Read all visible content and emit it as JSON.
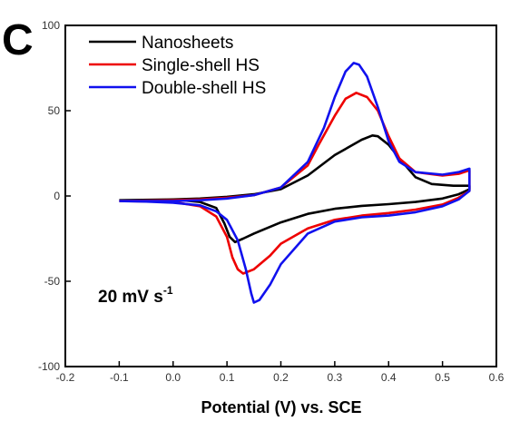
{
  "chart_data": {
    "type": "line",
    "panel_label": "C",
    "xlabel": "Potential (V) vs. SCE",
    "ylabel": "",
    "xlim": [
      -0.2,
      0.6
    ],
    "ylim": [
      -100,
      100
    ],
    "x_ticks": [
      "-0.2",
      "-0.1",
      "0.0",
      "0.1",
      "0.2",
      "0.3",
      "0.4",
      "0.5",
      "0.6"
    ],
    "y_ticks": [
      "-100",
      "-50",
      "0",
      "50",
      "100"
    ],
    "annotation": {
      "text": "20 mV s",
      "superscript": "-1"
    },
    "legend_position": "top-left",
    "grid": false,
    "series": [
      {
        "name": "Nanosheets",
        "color": "#000000",
        "points": [
          [
            -0.1,
            -2.5
          ],
          [
            0.0,
            -2.0
          ],
          [
            0.05,
            -3.5
          ],
          [
            0.08,
            -7.0
          ],
          [
            0.095,
            -16.0
          ],
          [
            0.105,
            -24.0
          ],
          [
            0.115,
            -27.0
          ],
          [
            0.13,
            -25.0
          ],
          [
            0.15,
            -22.0
          ],
          [
            0.2,
            -15.5
          ],
          [
            0.25,
            -10.5
          ],
          [
            0.3,
            -7.5
          ],
          [
            0.35,
            -5.8
          ],
          [
            0.4,
            -4.8
          ],
          [
            0.45,
            -3.5
          ],
          [
            0.5,
            -1.5
          ],
          [
            0.53,
            1.0
          ],
          [
            0.55,
            4.0
          ],
          [
            0.55,
            6.0
          ],
          [
            0.52,
            6.0
          ],
          [
            0.48,
            7.0
          ],
          [
            0.45,
            11.0
          ],
          [
            0.42,
            22.0
          ],
          [
            0.4,
            30.0
          ],
          [
            0.38,
            35.0
          ],
          [
            0.37,
            35.5
          ],
          [
            0.35,
            33.0
          ],
          [
            0.3,
            24.0
          ],
          [
            0.25,
            12.0
          ],
          [
            0.2,
            4.0
          ],
          [
            0.15,
            1.0
          ],
          [
            0.1,
            -0.5
          ],
          [
            0.05,
            -1.5
          ],
          [
            0.0,
            -2.0
          ],
          [
            -0.05,
            -2.3
          ],
          [
            -0.1,
            -2.5
          ]
        ]
      },
      {
        "name": "Single-shell HS",
        "color": "#ee0000",
        "points": [
          [
            -0.1,
            -3.0
          ],
          [
            -0.05,
            -3.2
          ],
          [
            0.0,
            -3.5
          ],
          [
            0.05,
            -6.0
          ],
          [
            0.08,
            -12.0
          ],
          [
            0.1,
            -24.0
          ],
          [
            0.11,
            -36.0
          ],
          [
            0.12,
            -43.0
          ],
          [
            0.13,
            -45.5
          ],
          [
            0.15,
            -43.0
          ],
          [
            0.18,
            -35.0
          ],
          [
            0.2,
            -28.0
          ],
          [
            0.25,
            -19.0
          ],
          [
            0.3,
            -14.0
          ],
          [
            0.35,
            -11.5
          ],
          [
            0.4,
            -10.0
          ],
          [
            0.45,
            -8.0
          ],
          [
            0.5,
            -5.0
          ],
          [
            0.53,
            -1.0
          ],
          [
            0.55,
            3.0
          ],
          [
            0.55,
            15.0
          ],
          [
            0.53,
            13.0
          ],
          [
            0.5,
            12.0
          ],
          [
            0.45,
            14.0
          ],
          [
            0.42,
            22.0
          ],
          [
            0.4,
            35.0
          ],
          [
            0.38,
            50.0
          ],
          [
            0.36,
            58.0
          ],
          [
            0.34,
            60.5
          ],
          [
            0.32,
            57.0
          ],
          [
            0.3,
            47.0
          ],
          [
            0.27,
            30.0
          ],
          [
            0.25,
            18.0
          ],
          [
            0.2,
            5.0
          ],
          [
            0.15,
            0.5
          ],
          [
            0.1,
            -1.0
          ],
          [
            0.05,
            -2.0
          ],
          [
            0.0,
            -2.5
          ],
          [
            -0.1,
            -3.0
          ]
        ]
      },
      {
        "name": "Double-shell HS",
        "color": "#1111ee",
        "points": [
          [
            -0.1,
            -3.0
          ],
          [
            -0.05,
            -3.3
          ],
          [
            0.0,
            -4.0
          ],
          [
            0.05,
            -5.5
          ],
          [
            0.08,
            -9.0
          ],
          [
            0.1,
            -14.0
          ],
          [
            0.12,
            -26.0
          ],
          [
            0.135,
            -43.0
          ],
          [
            0.145,
            -57.0
          ],
          [
            0.15,
            -62.5
          ],
          [
            0.16,
            -61.0
          ],
          [
            0.18,
            -52.0
          ],
          [
            0.2,
            -40.0
          ],
          [
            0.25,
            -22.0
          ],
          [
            0.3,
            -15.0
          ],
          [
            0.35,
            -12.5
          ],
          [
            0.4,
            -11.5
          ],
          [
            0.45,
            -9.5
          ],
          [
            0.5,
            -6.0
          ],
          [
            0.53,
            -2.0
          ],
          [
            0.55,
            3.0
          ],
          [
            0.55,
            16.0
          ],
          [
            0.53,
            14.0
          ],
          [
            0.5,
            12.5
          ],
          [
            0.45,
            14.0
          ],
          [
            0.42,
            20.0
          ],
          [
            0.4,
            32.0
          ],
          [
            0.38,
            52.0
          ],
          [
            0.36,
            70.0
          ],
          [
            0.345,
            77.0
          ],
          [
            0.335,
            78.0
          ],
          [
            0.32,
            73.0
          ],
          [
            0.3,
            58.0
          ],
          [
            0.28,
            40.0
          ],
          [
            0.25,
            20.0
          ],
          [
            0.2,
            5.0
          ],
          [
            0.15,
            0.5
          ],
          [
            0.1,
            -1.5
          ],
          [
            0.05,
            -2.5
          ],
          [
            0.0,
            -3.0
          ],
          [
            -0.1,
            -3.0
          ]
        ]
      }
    ]
  }
}
